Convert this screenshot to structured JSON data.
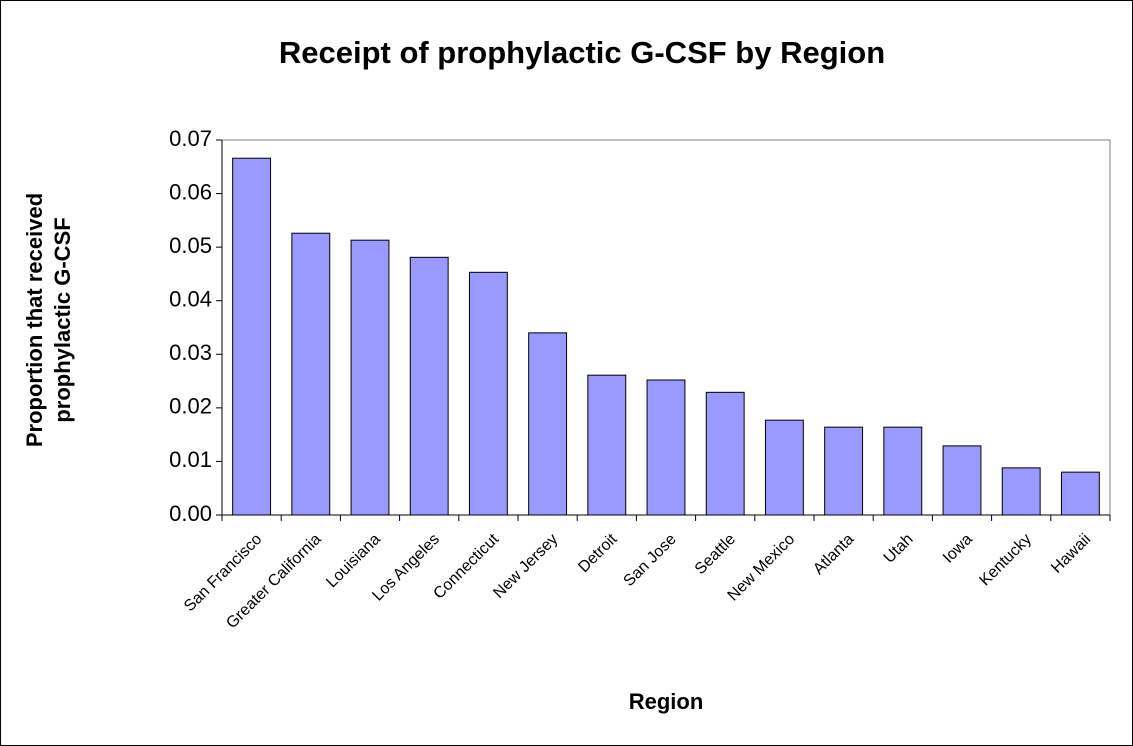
{
  "chart_data": {
    "type": "bar",
    "title": "Receipt of prophylactic G-CSF by Region",
    "xlabel": "Region",
    "ylabel": [
      "Proportion that received",
      "prophylactic G-CSF"
    ],
    "categories": [
      "San Francisco",
      "Greater California",
      "Louisiana",
      "Los Angeles",
      "Connecticut",
      "New Jersey",
      "Detroit",
      "San Jose",
      "Seattle",
      "New Mexico",
      "Atlanta",
      "Utah",
      "Iowa",
      "Kentucky",
      "Hawaii"
    ],
    "values": [
      0.0666,
      0.0526,
      0.0513,
      0.0481,
      0.0453,
      0.034,
      0.0261,
      0.0252,
      0.0229,
      0.0177,
      0.0164,
      0.0164,
      0.0129,
      0.0088,
      0.008
    ],
    "color": "#9999ff",
    "ylim": [
      0,
      0.07
    ],
    "yticks": [
      {
        "value": 0,
        "label": "0.00"
      },
      0.01,
      0.02,
      0.03,
      0.04,
      0.05,
      0.06,
      0.07
    ],
    "grid": false
  }
}
